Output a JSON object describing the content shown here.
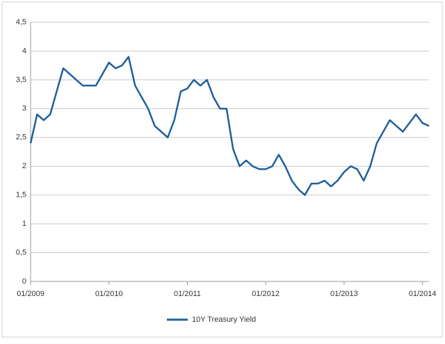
{
  "chart_data": {
    "type": "line",
    "x": [
      "01/2009",
      "02/2009",
      "03/2009",
      "04/2009",
      "05/2009",
      "06/2009",
      "07/2009",
      "08/2009",
      "09/2009",
      "10/2009",
      "11/2009",
      "12/2009",
      "01/2010",
      "02/2010",
      "03/2010",
      "04/2010",
      "05/2010",
      "06/2010",
      "07/2010",
      "08/2010",
      "09/2010",
      "10/2010",
      "11/2010",
      "12/2010",
      "01/2011",
      "02/2011",
      "03/2011",
      "04/2011",
      "05/2011",
      "06/2011",
      "07/2011",
      "08/2011",
      "09/2011",
      "10/2011",
      "11/2011",
      "12/2011",
      "01/2012",
      "02/2012",
      "03/2012",
      "04/2012",
      "05/2012",
      "06/2012",
      "07/2012",
      "08/2012",
      "09/2012",
      "10/2012",
      "11/2012",
      "12/2012",
      "01/2013",
      "02/2013",
      "03/2013",
      "04/2013",
      "05/2013",
      "06/2013",
      "07/2013",
      "08/2013",
      "09/2013",
      "10/2013",
      "11/2013",
      "12/2013",
      "01/2014",
      "02/2014"
    ],
    "series": [
      {
        "name": "10Y Treasury Yield",
        "color": "#1f5f9c",
        "values": [
          2.4,
          2.9,
          2.8,
          2.9,
          3.3,
          3.7,
          3.6,
          3.5,
          3.4,
          3.4,
          3.4,
          3.6,
          3.8,
          3.7,
          3.75,
          3.9,
          3.4,
          3.2,
          3.0,
          2.7,
          2.6,
          2.5,
          2.8,
          3.3,
          3.35,
          3.5,
          3.4,
          3.5,
          3.2,
          3.0,
          3.0,
          2.3,
          2.0,
          2.1,
          2.0,
          1.95,
          1.95,
          2.0,
          2.2,
          2.0,
          1.75,
          1.6,
          1.5,
          1.7,
          1.7,
          1.75,
          1.65,
          1.75,
          1.9,
          2.0,
          1.95,
          1.75,
          2.0,
          2.4,
          2.6,
          2.8,
          2.7,
          2.6,
          2.75,
          2.9,
          2.75,
          2.7
        ]
      }
    ],
    "xlim": [
      "01/2009",
      "02/2014"
    ],
    "xticks": [
      "01/2009",
      "01/2010",
      "01/2011",
      "01/2012",
      "01/2013",
      "01/2014"
    ],
    "ylim": [
      0,
      4.5
    ],
    "yticks": [
      0,
      {
        "value": 0.5,
        "label": "0,5"
      },
      1,
      {
        "value": 1.5,
        "label": "1,5"
      },
      2,
      {
        "value": 2.5,
        "label": "2,5"
      },
      3,
      {
        "value": 3.5,
        "label": "3,5"
      },
      4,
      {
        "value": 4.5,
        "label": "4,5"
      }
    ],
    "grid": true,
    "legend": "bottom"
  }
}
